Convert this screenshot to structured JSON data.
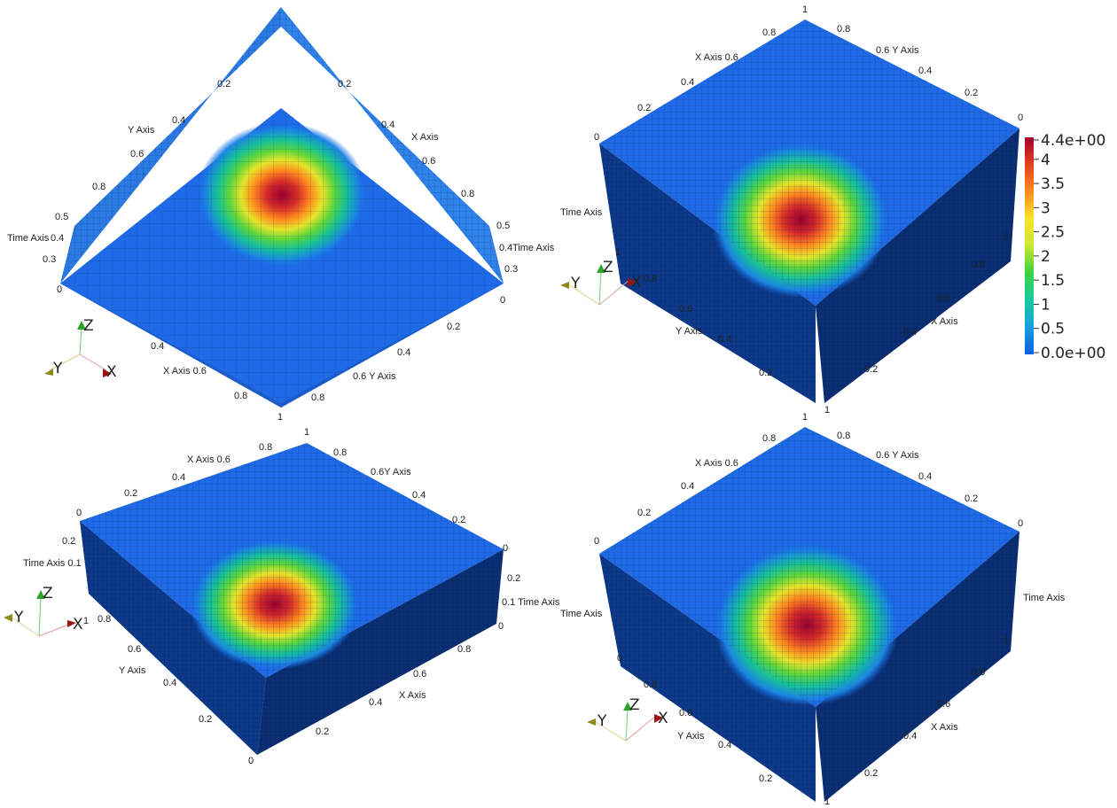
{
  "colorbar": {
    "labels": [
      "4.4e+00",
      "4",
      "3.5",
      "3",
      "2.5",
      "2",
      "1.5",
      "1",
      "0.5",
      "0.0e+00"
    ],
    "values": [
      4.4,
      4,
      3.5,
      3,
      2.5,
      2,
      1.5,
      1,
      0.5,
      0
    ],
    "colors": [
      "#0a5fe0",
      "#1aa0e0",
      "#19c9a2",
      "#3fd33c",
      "#c8e830",
      "#ffe02a",
      "#ff8a1e",
      "#e3401c",
      "#a40032"
    ]
  },
  "triad": {
    "x": "X",
    "y": "Y",
    "z": "Z"
  },
  "panels": [
    {
      "labels": [
        "0.2",
        "0.4",
        "0.6",
        "0.8",
        "Y Axis",
        "0.5",
        "0.4",
        "0.3",
        "Time Axis",
        "0",
        "0.2",
        "0.4",
        "X Axis",
        "0.6",
        "0.8",
        "0.5",
        "0.4",
        "Time Axis",
        "0.3",
        "0",
        "0.4",
        "X Axis 0.6",
        "0.8",
        "1",
        "0.2",
        "0.4",
        "0.6 Y Axis",
        "0.8"
      ]
    },
    {
      "labels": [
        "1",
        "0.8",
        "0.8",
        "X Axis 0.6",
        "0.6 Y Axis",
        "0.4",
        "0.4",
        "0.2",
        "0.2",
        "0",
        "0",
        "Time Axis",
        "1",
        "0.8",
        "0",
        "0.6",
        "Y Axis",
        "0.4",
        "0.2",
        "0.8",
        "0.6",
        "X Axis",
        "0.4",
        "0.2",
        "1"
      ]
    },
    {
      "labels": [
        "1",
        "0.8",
        "0.8",
        "X Axis 0.6",
        "0.6Y Axis",
        "0.4",
        "0.4",
        "0.2",
        "0.2",
        "0",
        "0",
        "0.2",
        "Time Axis 0.1",
        "0.2",
        "0.1 Time Axis",
        "0",
        "1",
        "0.8",
        "0.6",
        "Y Axis",
        "0.4",
        "0.2",
        "0",
        "0.8",
        "0.6",
        "X Axis",
        "0.4",
        "0.2"
      ]
    },
    {
      "labels": [
        "1",
        "0.8",
        "0.8",
        "X Axis 0.6",
        "0.6 Y Axis",
        "0.4",
        "0.4",
        "0.2",
        "0.2",
        "0",
        "0",
        "Time Axis",
        "Time Axis",
        "1",
        "0",
        "0.8",
        "0.6",
        "Y Axis",
        "0.4",
        "0.2",
        "0.8",
        "0.6",
        "X Axis",
        "0.4",
        "0.2",
        "1"
      ]
    }
  ]
}
